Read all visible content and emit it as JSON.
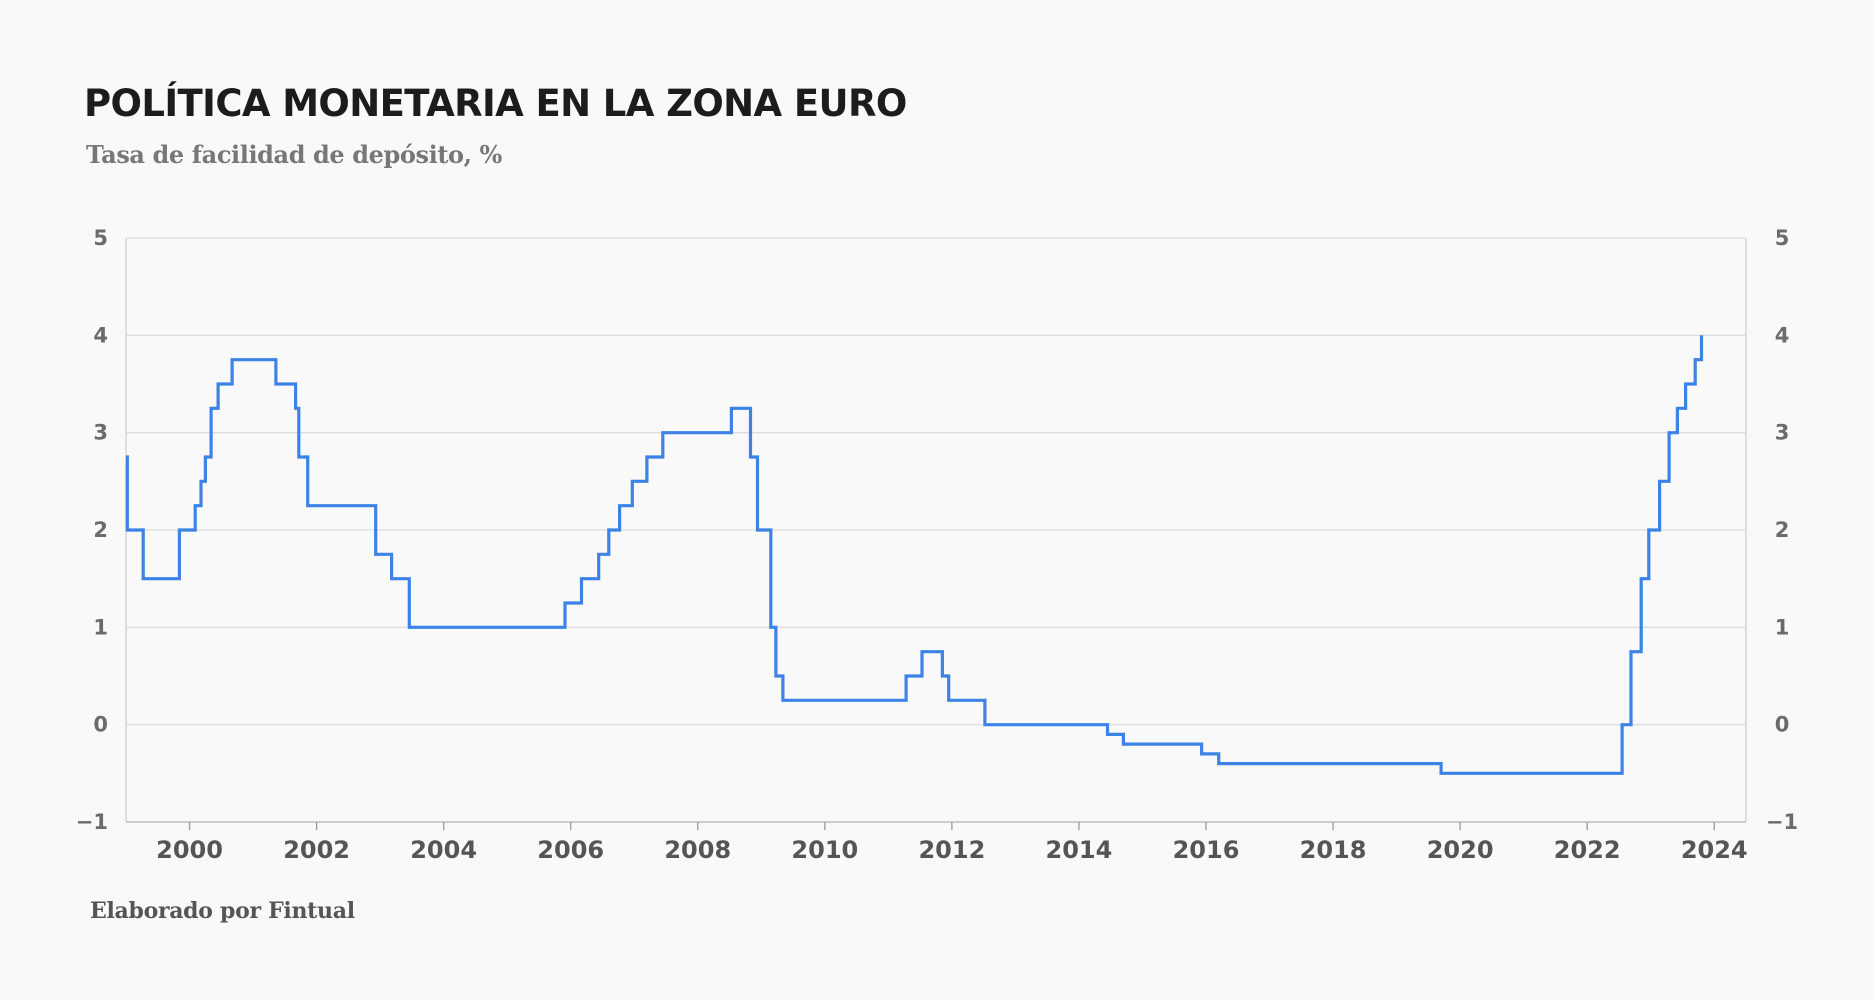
{
  "title": "POLÍTICA MONETARIA EN LA ZONA EURO",
  "subtitle": "Tasa de facilidad de depósito, %",
  "footer": "Elaborado por Fintual",
  "chart_data": {
    "type": "line",
    "step": true,
    "title": "POLÍTICA MONETARIA EN LA ZONA EURO",
    "subtitle": "Tasa de facilidad de depósito, %",
    "xlabel": "",
    "ylabel": "",
    "xlim": [
      1999.0,
      2024.5
    ],
    "ylim": [
      -1,
      5
    ],
    "grid": true,
    "legend": "none",
    "dual_y_axis": true,
    "color": "#3d82e6",
    "x_ticks": [
      2000,
      2002,
      2004,
      2006,
      2008,
      2010,
      2012,
      2014,
      2016,
      2018,
      2020,
      2022,
      2024
    ],
    "x_tick_labels": [
      "2000",
      "2002",
      "2004",
      "2006",
      "2008",
      "2010",
      "2012",
      "2014",
      "2016",
      "2018",
      "2020",
      "2022",
      "2024"
    ],
    "y_ticks": [
      -1,
      0,
      1,
      2,
      3,
      4,
      5
    ],
    "y_tick_labels": [
      "−1",
      "0",
      "1",
      "2",
      "3",
      "4",
      "5"
    ],
    "series": [
      {
        "x": [
          1999.0,
          1999.02,
          1999.27,
          1999.84,
          2000.09,
          2000.18,
          2000.25,
          2000.34,
          2000.45,
          2000.67,
          2000.76,
          2001.36,
          2001.67,
          2001.72,
          2001.86,
          2002.93,
          2003.18,
          2003.46,
          2005.91,
          2006.17,
          2006.44,
          2006.6,
          2006.77,
          2006.97,
          2007.2,
          2007.45,
          2008.53,
          2008.83,
          2008.94,
          2009.15,
          2009.23,
          2009.34,
          2011.28,
          2011.53,
          2011.85,
          2011.95,
          2012.52,
          2014.45,
          2014.7,
          2015.93,
          2016.2,
          2019.7,
          2022.55,
          2022.69,
          2022.85,
          2022.97,
          2023.14,
          2023.29,
          2023.42,
          2023.55,
          2023.7,
          2023.8
        ],
        "y": [
          2.75,
          2.0,
          1.5,
          2.0,
          2.25,
          2.5,
          2.75,
          3.25,
          3.5,
          3.75,
          3.75,
          3.5,
          3.25,
          2.75,
          2.25,
          1.75,
          1.5,
          1.0,
          1.25,
          1.5,
          1.75,
          2.0,
          2.25,
          2.5,
          2.75,
          3.0,
          3.25,
          2.75,
          2.0,
          1.0,
          0.5,
          0.25,
          0.5,
          0.75,
          0.5,
          0.25,
          0.0,
          -0.1,
          -0.2,
          -0.3,
          -0.4,
          -0.5,
          0.0,
          0.75,
          1.5,
          2.0,
          2.5,
          3.0,
          3.25,
          3.5,
          3.75,
          4.0
        ]
      }
    ]
  }
}
